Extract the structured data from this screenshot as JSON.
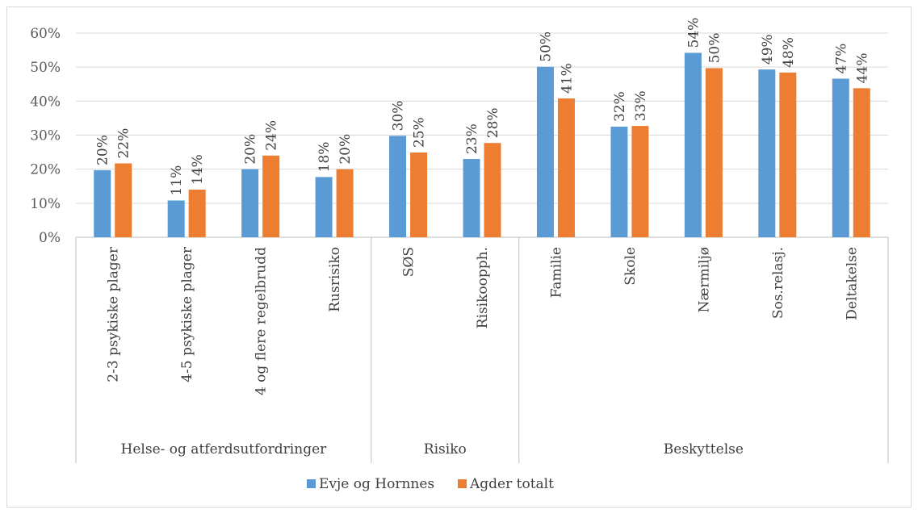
{
  "chart_data": {
    "type": "bar",
    "title": "",
    "xlabel": "",
    "ylabel": "",
    "ylim": [
      0,
      0.6
    ],
    "yticks": [
      "0%",
      "10%",
      "20%",
      "30%",
      "40%",
      "50%",
      "60%"
    ],
    "grid": true,
    "legend_position": "bottom",
    "categories": [
      "2-3 psykiske plager",
      "4-5 psykiske plager",
      "4 og flere regelbrudd",
      "Rusrisiko",
      "SØS",
      "Risikoopph.",
      "Familie",
      "Skole",
      "Nærmiljø",
      "Sos.relasj.",
      "Deltakelse"
    ],
    "groups": [
      {
        "label": "Helse- og atferdsutfordringer",
        "start": 0,
        "count": 4
      },
      {
        "label": "Risiko",
        "start": 4,
        "count": 2
      },
      {
        "label": "Beskyttelse",
        "start": 6,
        "count": 5
      }
    ],
    "series": [
      {
        "name": "Evje og Hornnes",
        "color": "#5b9bd5",
        "values": [
          0.197,
          0.108,
          0.2,
          0.177,
          0.298,
          0.23,
          0.501,
          0.325,
          0.542,
          0.493,
          0.466
        ],
        "labels": [
          "20%",
          "11%",
          "20%",
          "18%",
          "30%",
          "23%",
          "50%",
          "32%",
          "54%",
          "49%",
          "47%"
        ]
      },
      {
        "name": "Agder totalt",
        "color": "#ed7d31",
        "values": [
          0.217,
          0.14,
          0.24,
          0.2,
          0.249,
          0.277,
          0.408,
          0.327,
          0.497,
          0.484,
          0.438
        ],
        "labels": [
          "22%",
          "14%",
          "24%",
          "20%",
          "25%",
          "28%",
          "41%",
          "33%",
          "50%",
          "48%",
          "44%"
        ]
      }
    ]
  }
}
